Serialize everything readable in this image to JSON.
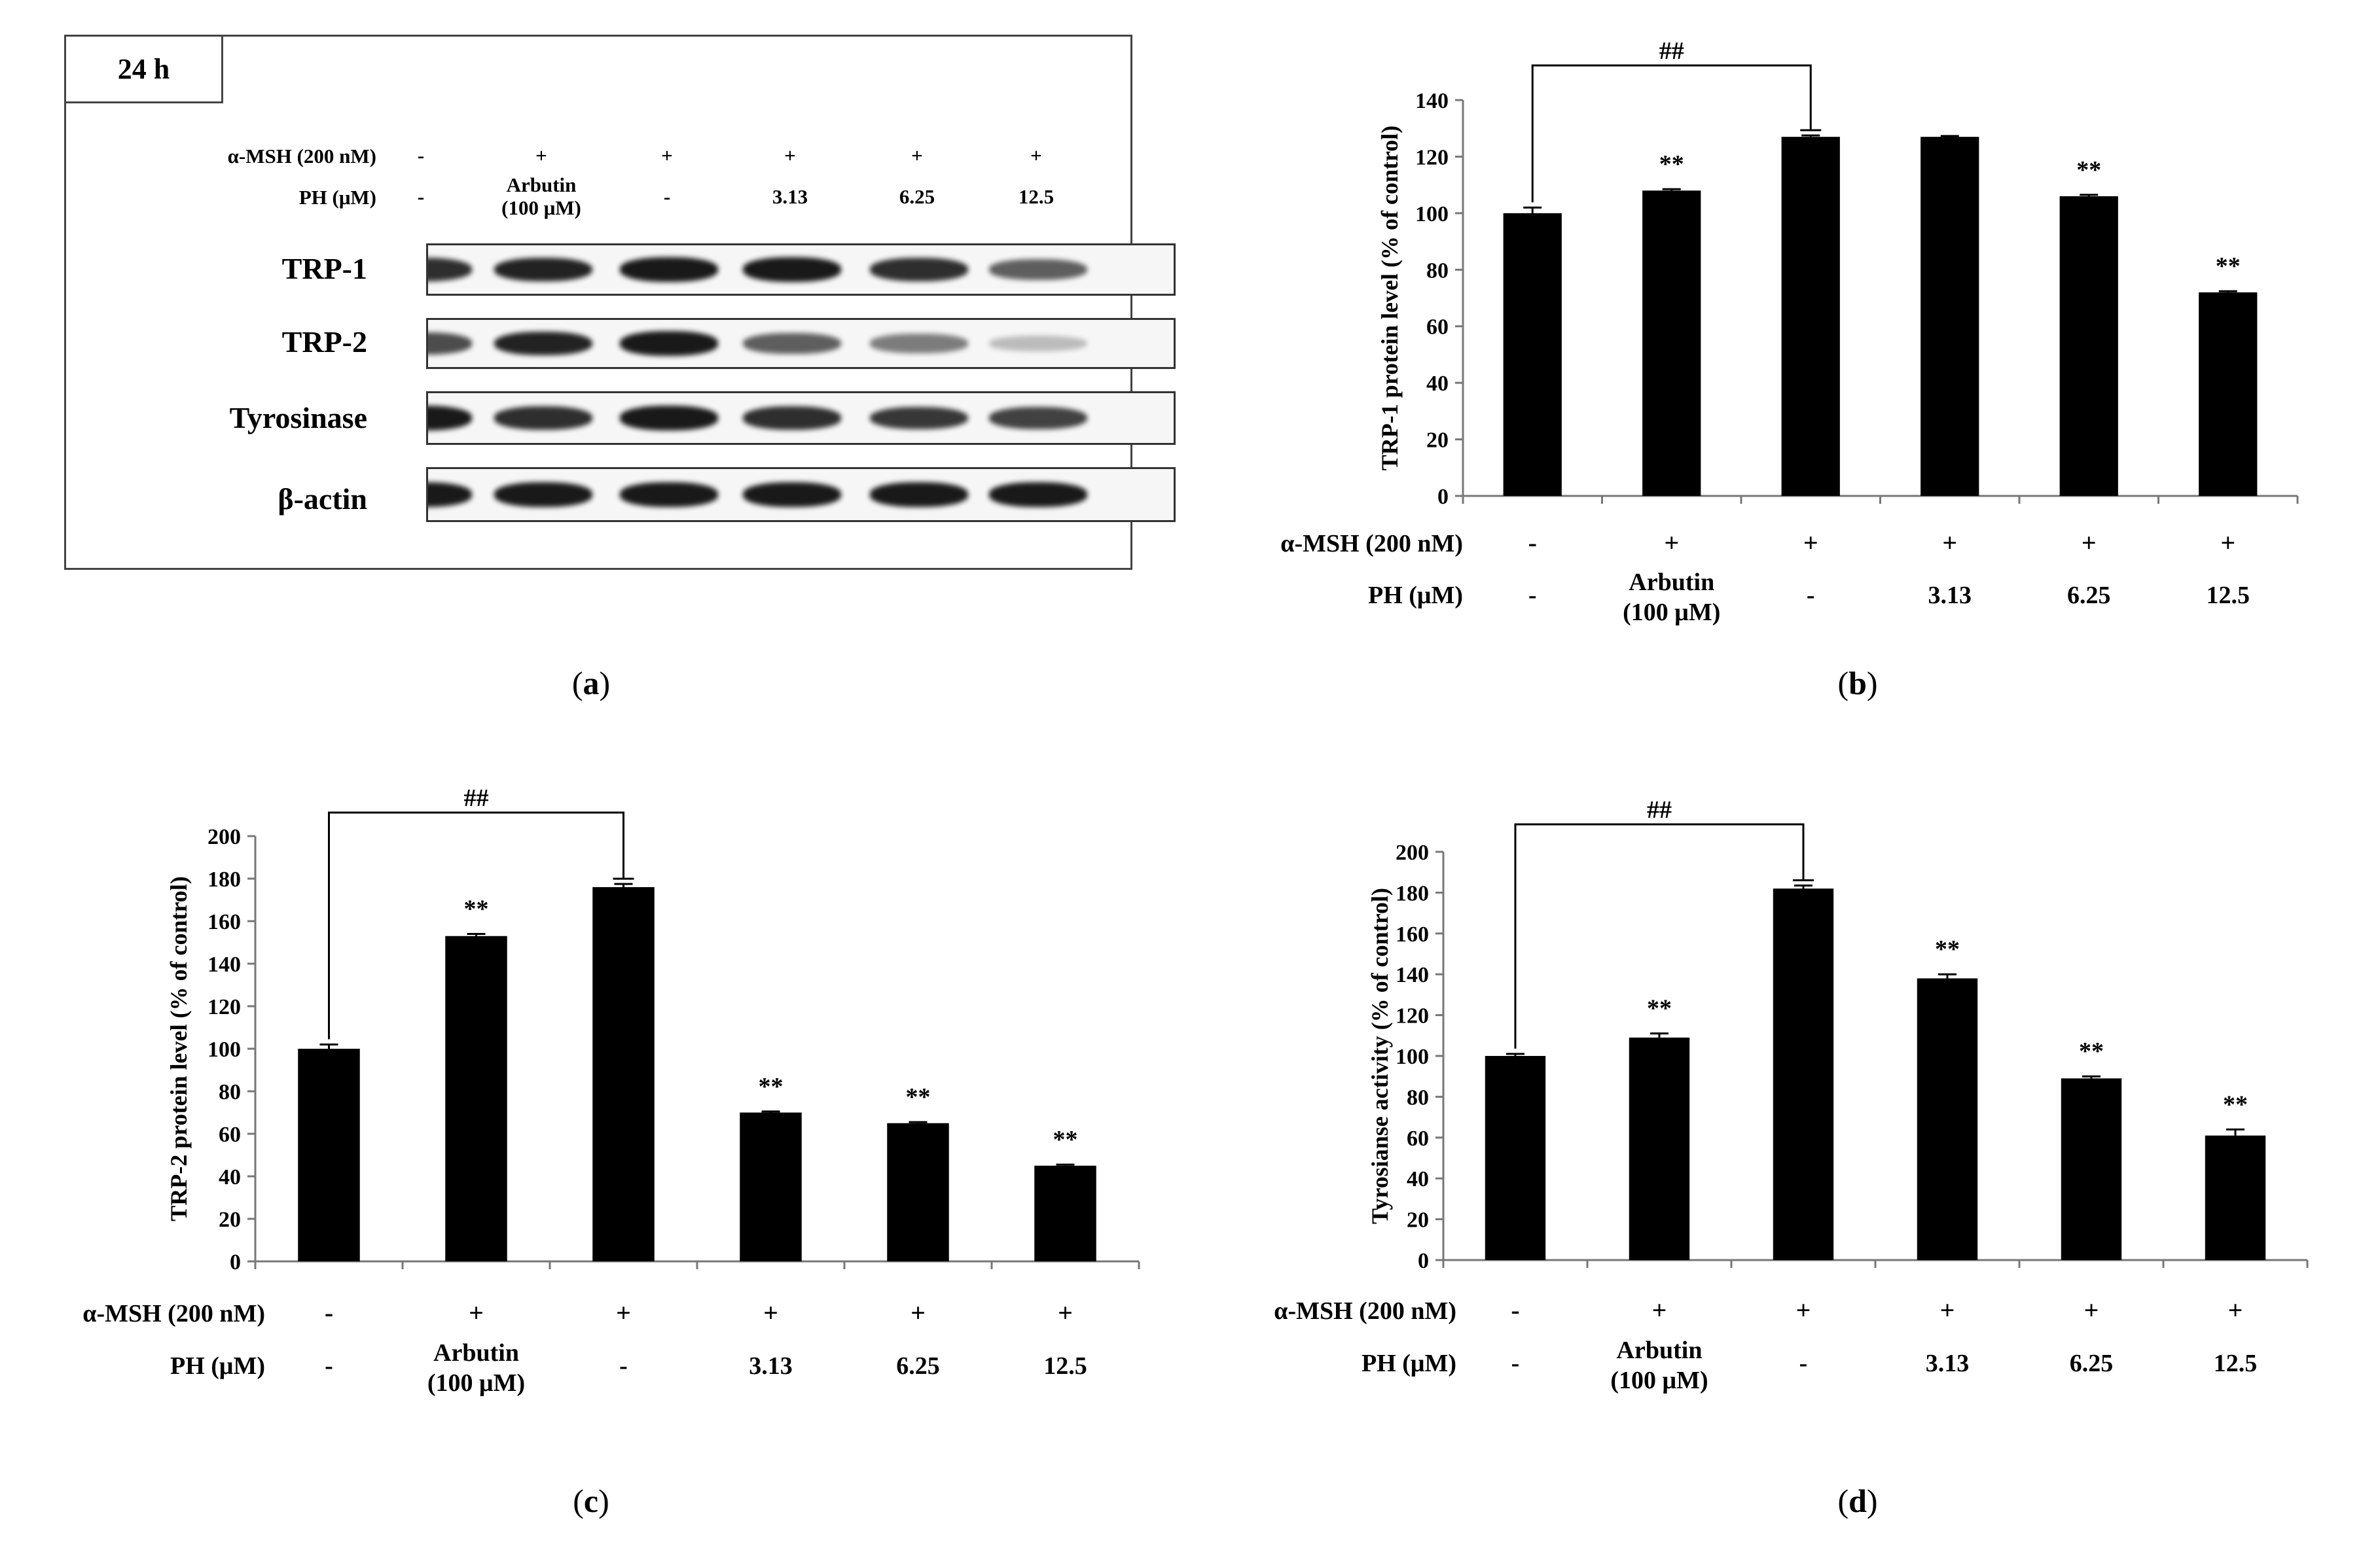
{
  "blot": {
    "time_label": "24 h",
    "row_labels": {
      "msh": "α-MSH (200 nM)",
      "ph": "PH (μM)"
    },
    "lanes": [
      {
        "msh": "-",
        "ph": "-"
      },
      {
        "msh": "+",
        "ph": "Arbutin\n(100 μM)"
      },
      {
        "msh": "+",
        "ph": "-"
      },
      {
        "msh": "+",
        "ph": "3.13"
      },
      {
        "msh": "+",
        "ph": "6.25"
      },
      {
        "msh": "+",
        "ph": "12.5"
      }
    ],
    "bands": [
      {
        "name": "TRP-1",
        "intensity": [
          0.85,
          0.9,
          0.95,
          0.95,
          0.85,
          0.6
        ]
      },
      {
        "name": "TRP-2",
        "intensity": [
          0.7,
          0.9,
          0.95,
          0.6,
          0.45,
          0.12
        ]
      },
      {
        "name": "Tyrosinase",
        "intensity": [
          0.95,
          0.85,
          0.95,
          0.85,
          0.8,
          0.75
        ]
      },
      {
        "name": "β-actin",
        "intensity": [
          0.95,
          0.95,
          0.95,
          0.95,
          0.95,
          0.95
        ]
      }
    ],
    "caption": "a"
  },
  "chart_data": [
    {
      "id": "b",
      "type": "bar",
      "caption": "b",
      "ylabel": "TRP-1 protein level (% of control)",
      "ylim": [
        0,
        140
      ],
      "yticks": [
        0,
        20,
        40,
        60,
        80,
        100,
        120,
        140
      ],
      "categories": [
        {
          "msh": "-",
          "ph": "-"
        },
        {
          "msh": "+",
          "ph": "Arbutin\n(100 μM)"
        },
        {
          "msh": "+",
          "ph": "-"
        },
        {
          "msh": "+",
          "ph": "3.13"
        },
        {
          "msh": "+",
          "ph": "6.25"
        },
        {
          "msh": "+",
          "ph": "12.5"
        }
      ],
      "row_labels": {
        "msh": "α-MSH (200 nM)",
        "ph": "PH (μM)"
      },
      "values": [
        100,
        108,
        127,
        127,
        106,
        72
      ],
      "errors": [
        2,
        0.5,
        0.5,
        0.3,
        0.5,
        0.4
      ],
      "significance": [
        "",
        "**",
        "",
        "",
        "**",
        "**"
      ],
      "bracket": {
        "from": 0,
        "to": 2,
        "label": "##"
      }
    },
    {
      "id": "c",
      "type": "bar",
      "caption": "c",
      "ylabel": "TRP-2 protein level (% of control)",
      "ylim": [
        0,
        200
      ],
      "yticks": [
        0,
        20,
        40,
        60,
        80,
        100,
        120,
        140,
        160,
        180,
        200
      ],
      "categories": [
        {
          "msh": "-",
          "ph": "-"
        },
        {
          "msh": "+",
          "ph": "Arbutin\n(100 μM)"
        },
        {
          "msh": "+",
          "ph": "-"
        },
        {
          "msh": "+",
          "ph": "3.13"
        },
        {
          "msh": "+",
          "ph": "6.25"
        },
        {
          "msh": "+",
          "ph": "12.5"
        }
      ],
      "row_labels": {
        "msh": "α-MSH (200 nM)",
        "ph": "PH (μM)"
      },
      "values": [
        100,
        153,
        176,
        70,
        65,
        45
      ],
      "errors": [
        2,
        1,
        1.5,
        0.5,
        0.5,
        0.5
      ],
      "significance": [
        "",
        "**",
        "",
        "**",
        "**",
        "**"
      ],
      "bracket": {
        "from": 0,
        "to": 2,
        "label": "##"
      }
    },
    {
      "id": "d",
      "type": "bar",
      "caption": "d",
      "ylabel": "Tyrosianse activity (% of control)",
      "ylim": [
        0,
        200
      ],
      "yticks": [
        0,
        20,
        40,
        60,
        80,
        100,
        120,
        140,
        160,
        180,
        200
      ],
      "categories": [
        {
          "msh": "-",
          "ph": "-"
        },
        {
          "msh": "+",
          "ph": "Arbutin\n(100 μM)"
        },
        {
          "msh": "+",
          "ph": "-"
        },
        {
          "msh": "+",
          "ph": "3.13"
        },
        {
          "msh": "+",
          "ph": "6.25"
        },
        {
          "msh": "+",
          "ph": "12.5"
        }
      ],
      "row_labels": {
        "msh": "α-MSH (200 nM)",
        "ph": "PH (μM)"
      },
      "values": [
        100,
        109,
        182,
        138,
        89,
        61
      ],
      "errors": [
        1,
        2,
        1.5,
        2,
        1,
        3
      ],
      "significance": [
        "",
        "**",
        "",
        "**",
        "**",
        "**"
      ],
      "bracket": {
        "from": 0,
        "to": 2,
        "label": "##"
      }
    }
  ]
}
